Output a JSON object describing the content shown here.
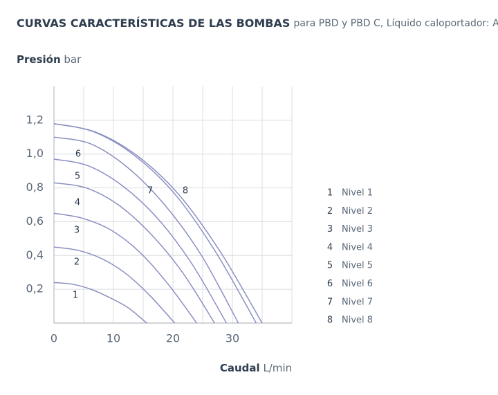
{
  "chart_data": {
    "type": "line",
    "title": "CURVAS CARACTERÍSTICAS DE LAS BOMBAS",
    "subtitle": "para PBD y PBD C, Líquido caloportador: Agua",
    "y_label": "Presión",
    "y_unit": "bar",
    "x_label": "Caudal",
    "x_unit": "L/min",
    "xlim": [
      0,
      40
    ],
    "ylim": [
      0,
      1.4
    ],
    "xticks": [
      0,
      10,
      20,
      30
    ],
    "xgrid": [
      0,
      5,
      10,
      15,
      20,
      25,
      30,
      35,
      40
    ],
    "yticks": [
      {
        "value": 0.2,
        "label": "0,2"
      },
      {
        "value": 0.4,
        "label": "0,4"
      },
      {
        "value": 0.6,
        "label": "0,6"
      },
      {
        "value": 0.8,
        "label": "0,8"
      },
      {
        "value": 1.0,
        "label": "1,0"
      },
      {
        "value": 1.2,
        "label": "1,2"
      }
    ],
    "grid": true,
    "series": [
      {
        "name": "Nivel 1",
        "label": "1",
        "color": "#8a8fc2",
        "x": [
          0,
          3.1,
          6.2,
          9.4,
          12.5,
          15.6
        ],
        "values": [
          0.24,
          0.23,
          0.2,
          0.15,
          0.09,
          0
        ]
      },
      {
        "name": "Nivel 2",
        "label": "2",
        "color": "#8a8fc2",
        "x": [
          0,
          4.1,
          8.1,
          12.2,
          16.2,
          20.3
        ],
        "values": [
          0.45,
          0.43,
          0.38,
          0.29,
          0.16,
          0
        ]
      },
      {
        "name": "Nivel 3",
        "label": "3",
        "color": "#8a8fc2",
        "x": [
          0,
          4.8,
          9.6,
          14.4,
          19.2,
          24
        ],
        "values": [
          0.65,
          0.62,
          0.55,
          0.42,
          0.23,
          0
        ]
      },
      {
        "name": "Nivel 4",
        "label": "4",
        "color": "#8a8fc2",
        "x": [
          0,
          5.4,
          10.8,
          16.2,
          21.6,
          27
        ],
        "values": [
          0.83,
          0.8,
          0.7,
          0.53,
          0.3,
          0
        ]
      },
      {
        "name": "Nivel 5",
        "label": "5",
        "color": "#8a8fc2",
        "x": [
          0,
          5.8,
          11.6,
          17.4,
          23.2,
          29
        ],
        "values": [
          0.97,
          0.93,
          0.81,
          0.62,
          0.35,
          0
        ]
      },
      {
        "name": "Nivel 6",
        "label": "6",
        "color": "#8a8fc2",
        "x": [
          0,
          6.2,
          12.4,
          18.6,
          24.8,
          31
        ],
        "values": [
          1.1,
          1.06,
          0.92,
          0.7,
          0.4,
          0
        ]
      },
      {
        "name": "Nivel 7",
        "label": "7",
        "color": "#8a8fc2",
        "x": [
          0,
          6.8,
          13.6,
          20.4,
          27.2,
          34
        ],
        "values": [
          1.18,
          1.13,
          0.99,
          0.76,
          0.42,
          0
        ]
      },
      {
        "name": "Nivel 8",
        "label": "8",
        "color": "#8a8fc2",
        "x": [
          0,
          7,
          14,
          21,
          28,
          35
        ],
        "values": [
          1.18,
          1.13,
          0.99,
          0.76,
          0.42,
          0
        ]
      }
    ]
  }
}
